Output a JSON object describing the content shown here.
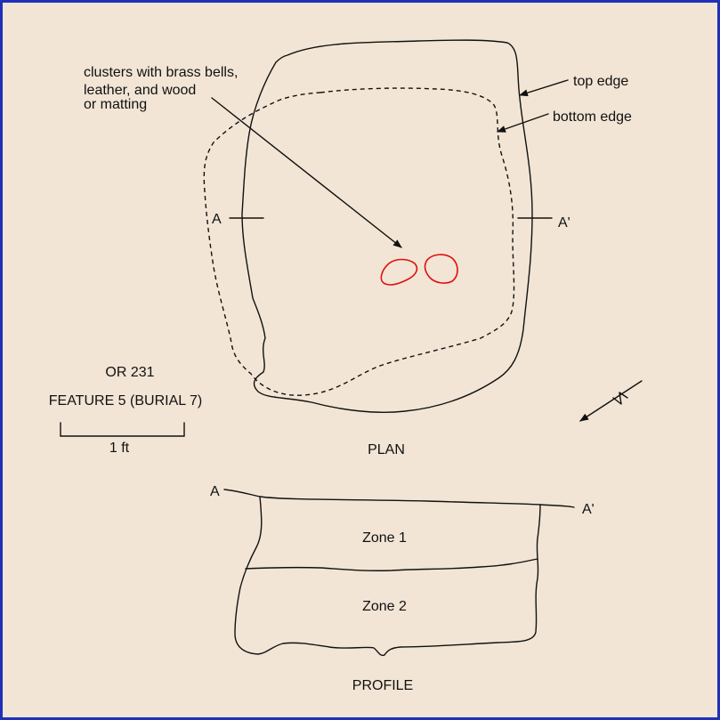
{
  "plan": {
    "site": "OR 231",
    "feature": "FEATURE 5 (BURIAL 7)",
    "scale_label": "1 ft",
    "view_label": "PLAN",
    "section_left": "A",
    "section_right": "A'",
    "callout_clusters": [
      "clusters with brass bells,",
      "leather, and wood",
      "or matting"
    ],
    "callout_top_edge": "top edge",
    "callout_bottom_edge": "bottom edge",
    "north_arrow_label": "N"
  },
  "profile": {
    "view_label": "PROFILE",
    "section_left": "A",
    "section_right": "A'",
    "zones": [
      "Zone 1",
      "Zone 2"
    ]
  },
  "colors": {
    "background": "#f2e5d5",
    "frame": "#1f2fb8",
    "linework": "#111111",
    "clusters": "#e01010"
  }
}
